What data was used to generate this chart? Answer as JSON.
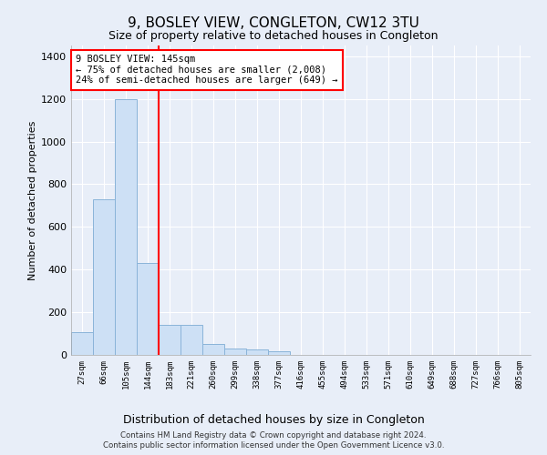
{
  "title": "9, BOSLEY VIEW, CONGLETON, CW12 3TU",
  "subtitle": "Size of property relative to detached houses in Congleton",
  "xlabel": "Distribution of detached houses by size in Congleton",
  "ylabel": "Number of detached properties",
  "bar_labels": [
    "27sqm",
    "66sqm",
    "105sqm",
    "144sqm",
    "183sqm",
    "221sqm",
    "260sqm",
    "299sqm",
    "338sqm",
    "377sqm",
    "416sqm",
    "455sqm",
    "494sqm",
    "533sqm",
    "571sqm",
    "610sqm",
    "649sqm",
    "688sqm",
    "727sqm",
    "766sqm",
    "805sqm"
  ],
  "bar_values": [
    105,
    730,
    1200,
    430,
    140,
    140,
    50,
    30,
    25,
    15,
    0,
    0,
    0,
    0,
    0,
    0,
    0,
    0,
    0,
    0,
    0
  ],
  "bar_color": "#cde0f5",
  "bar_edge_color": "#8ab4d9",
  "red_line_x": 3.5,
  "annotation_line1": "9 BOSLEY VIEW: 145sqm",
  "annotation_line2": "← 75% of detached houses are smaller (2,008)",
  "annotation_line3": "24% of semi-detached houses are larger (649) →",
  "annotation_box_color": "white",
  "annotation_box_edge_color": "red",
  "ylim": [
    0,
    1450
  ],
  "yticks": [
    0,
    200,
    400,
    600,
    800,
    1000,
    1200,
    1400
  ],
  "footer_line1": "Contains HM Land Registry data © Crown copyright and database right 2024.",
  "footer_line2": "Contains public sector information licensed under the Open Government Licence v3.0.",
  "bg_color": "#e8eef8",
  "plot_bg_color": "#e8eef8"
}
